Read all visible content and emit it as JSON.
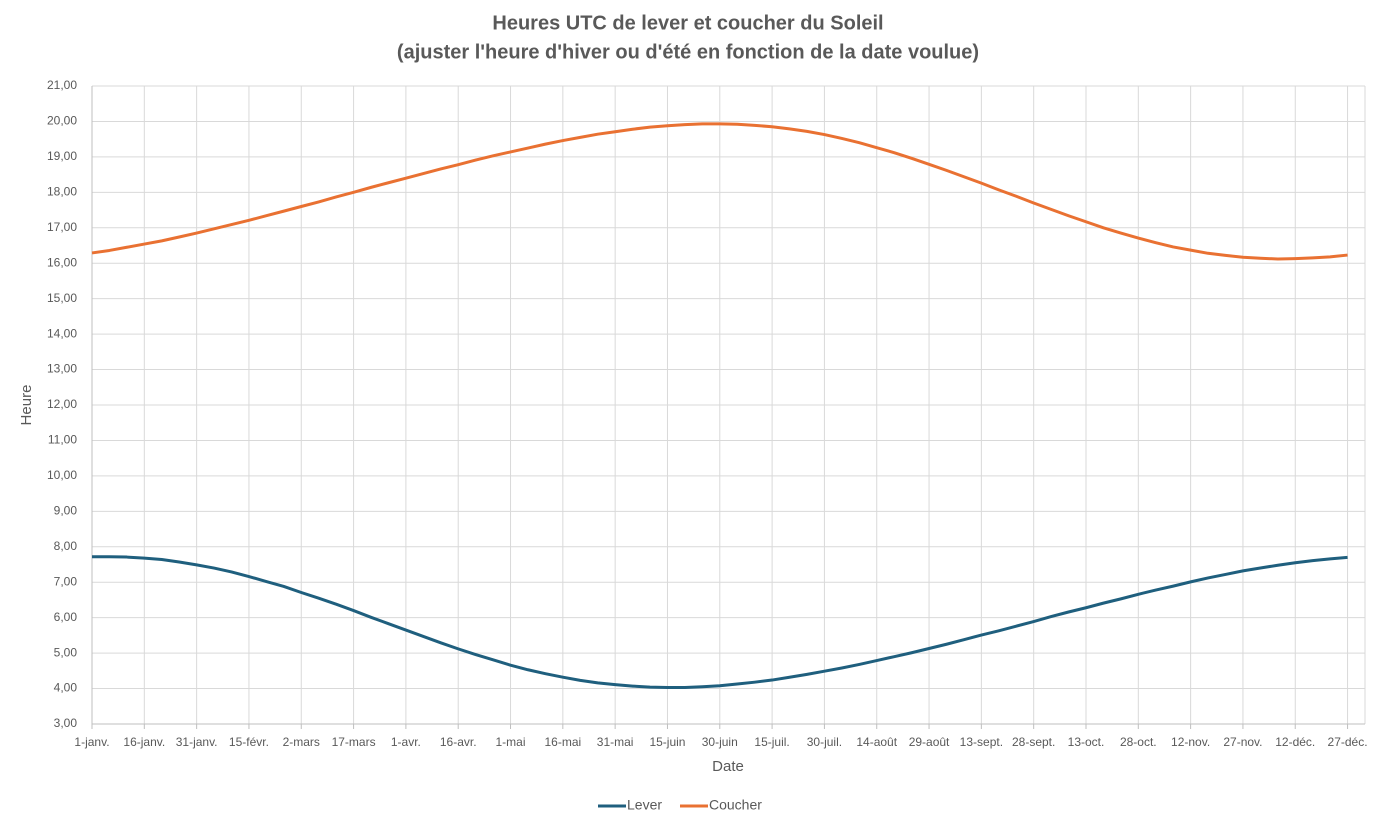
{
  "chart_data": {
    "type": "line",
    "title": "Heures UTC de lever et coucher du Soleil",
    "subtitle": "(ajuster l'heure d'hiver ou d'été en fonction de la date voulue)",
    "x_label": "Date",
    "y_label": "Heure",
    "categories": [
      "1-janv.",
      null,
      null,
      "16-janv.",
      null,
      null,
      "31-janv.",
      null,
      null,
      "15-févr.",
      null,
      null,
      "2-mars",
      null,
      null,
      "17-mars",
      null,
      null,
      "1-avr.",
      null,
      null,
      "16-avr.",
      null,
      null,
      "1-mai",
      null,
      null,
      "16-mai",
      null,
      null,
      "31-mai",
      null,
      null,
      "15-juin",
      null,
      null,
      "30-juin",
      null,
      null,
      "15-juil.",
      null,
      null,
      "30-juil.",
      null,
      null,
      "14-août",
      null,
      null,
      "29-août",
      null,
      null,
      "13-sept.",
      null,
      null,
      "28-sept.",
      null,
      null,
      "13-oct.",
      null,
      null,
      "28-oct.",
      null,
      null,
      "12-nov.",
      null,
      null,
      "27-nov.",
      null,
      null,
      "12-déc.",
      null,
      null,
      "27-déc."
    ],
    "series": [
      {
        "name": "Lever",
        "color": "#1f5f7e",
        "values": [
          7.72,
          7.72,
          7.71,
          7.68,
          7.64,
          7.57,
          7.49,
          7.4,
          7.29,
          7.16,
          7.02,
          6.88,
          6.71,
          6.55,
          6.38,
          6.2,
          6.01,
          5.83,
          5.65,
          5.47,
          5.29,
          5.12,
          4.96,
          4.81,
          4.66,
          4.53,
          4.42,
          4.32,
          4.23,
          4.16,
          4.11,
          4.07,
          4.04,
          4.03,
          4.03,
          4.05,
          4.08,
          4.13,
          4.18,
          4.24,
          4.32,
          4.4,
          4.49,
          4.58,
          4.68,
          4.79,
          4.9,
          5.01,
          5.13,
          5.25,
          5.38,
          5.51,
          5.63,
          5.76,
          5.89,
          6.03,
          6.16,
          6.28,
          6.41,
          6.53,
          6.66,
          6.78,
          6.89,
          7.01,
          7.12,
          7.22,
          7.32,
          7.4,
          7.48,
          7.55,
          7.61,
          7.66,
          7.7
        ]
      },
      {
        "name": "Coucher",
        "color": "#e97132",
        "values": [
          16.29,
          16.36,
          16.45,
          16.54,
          16.63,
          16.74,
          16.85,
          16.97,
          17.09,
          17.21,
          17.34,
          17.47,
          17.6,
          17.73,
          17.87,
          18.0,
          18.14,
          18.27,
          18.4,
          18.53,
          18.66,
          18.78,
          18.91,
          19.03,
          19.14,
          19.25,
          19.36,
          19.46,
          19.55,
          19.64,
          19.71,
          19.78,
          19.84,
          19.88,
          19.91,
          19.93,
          19.93,
          19.92,
          19.89,
          19.85,
          19.79,
          19.72,
          19.63,
          19.52,
          19.4,
          19.26,
          19.12,
          18.96,
          18.79,
          18.62,
          18.44,
          18.26,
          18.07,
          17.89,
          17.7,
          17.52,
          17.34,
          17.17,
          17.0,
          16.85,
          16.71,
          16.58,
          16.46,
          16.37,
          16.28,
          16.22,
          16.17,
          16.14,
          16.12,
          16.13,
          16.15,
          16.18,
          16.23
        ]
      }
    ],
    "ylim": [
      3,
      21
    ],
    "yticks": [
      {
        "value": 3,
        "label": "3,00"
      },
      {
        "value": 4,
        "label": "4,00"
      },
      {
        "value": 5,
        "label": "5,00"
      },
      {
        "value": 6,
        "label": "6,00"
      },
      {
        "value": 7,
        "label": "7,00"
      },
      {
        "value": 8,
        "label": "8,00"
      },
      {
        "value": 9,
        "label": "9,00"
      },
      {
        "value": 10,
        "label": "10,00"
      },
      {
        "value": 11,
        "label": "11,00"
      },
      {
        "value": 12,
        "label": "12,00"
      },
      {
        "value": 13,
        "label": "13,00"
      },
      {
        "value": 14,
        "label": "14,00"
      },
      {
        "value": 15,
        "label": "15,00"
      },
      {
        "value": 16,
        "label": "16,00"
      },
      {
        "value": 17,
        "label": "17,00"
      },
      {
        "value": 18,
        "label": "18,00"
      },
      {
        "value": 19,
        "label": "19,00"
      },
      {
        "value": 20,
        "label": "20,00"
      },
      {
        "value": 21,
        "label": "21,00"
      }
    ],
    "grid": true,
    "legend": "bottom"
  }
}
